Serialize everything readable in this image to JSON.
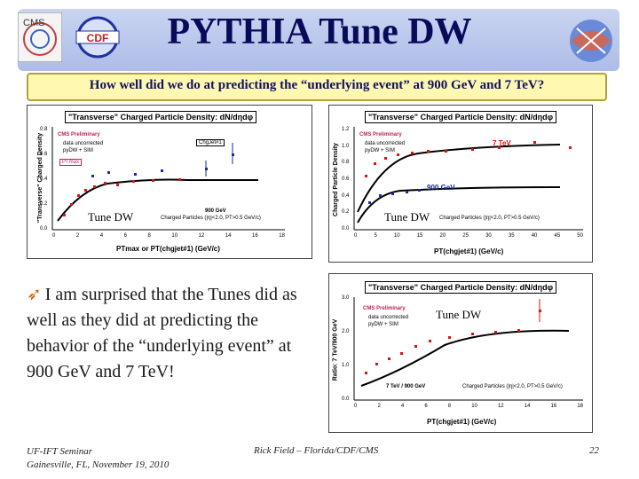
{
  "header": {
    "title": "PYTHIA Tune DW",
    "question": "How well did we do at predicting the “underlying event” at 900 GeV and 7 TeV?"
  },
  "logos": {
    "cdf_text": "CDF",
    "cms_text": "CMS"
  },
  "plots": {
    "p1": {
      "title": "\"Transverse\" Charged Particle Density: dN/dηdφ",
      "ylabel": "\"Transverse\" Charged Density",
      "xlabel": "PTmax or PT(chgjet#1) (GeV/c)",
      "legend_prelim": "CMS Preliminary",
      "legend_data": "data uncorrected",
      "legend_sim": "pyDW + SIM",
      "legend_ptmax": "PTmax",
      "legend_chgjet": "ChgJet#1",
      "energy": "900 GeV",
      "cuts": "Charged Particles (|η|<2.0, PT>0.5 GeV/c)",
      "tune": "Tune DW",
      "xticks": [
        "0",
        "2",
        "4",
        "6",
        "8",
        "10",
        "12",
        "14",
        "16",
        "18"
      ],
      "yticks": [
        "0.0",
        "0.2",
        "0.4",
        "0.6",
        "0.8"
      ]
    },
    "p2": {
      "title": "\"Transverse\" Charged Particle Density: dN/dηdφ",
      "ylabel": "Charged Particle Density",
      "xlabel": "PT(chgjet#1) (GeV/c)",
      "legend_prelim": "CMS Preliminary",
      "legend_data": "data uncorrected",
      "legend_sim": "pyDW + SIM",
      "energy_high": "7 TeV",
      "energy_low": "900 GeV",
      "cuts": "Charged Particles (|η|<2.0, PT>0.5 GeV/c)",
      "tune": "Tune DW",
      "xticks": [
        "0",
        "5",
        "10",
        "15",
        "20",
        "25",
        "30",
        "35",
        "40",
        "45",
        "50"
      ],
      "yticks": [
        "0.0",
        "0.2",
        "0.4",
        "0.6",
        "0.8",
        "1.0",
        "1.2"
      ]
    },
    "p3": {
      "title": "\"Transverse\" Charged Particle Density: dN/dηdφ",
      "ylabel": "Ratio: 7 TeV/900 GeV",
      "xlabel": "PT(chgjet#1) (GeV/c)",
      "legend_prelim": "CMS Preliminary",
      "legend_data": "data uncorrected",
      "legend_sim": "pyDW + SIM",
      "ratio_label": "7 TeV / 900 GeV",
      "cuts": "Charged Particles (|η|<2.0, PT>0.5 GeV/c)",
      "tune": "Tune DW",
      "xticks": [
        "0",
        "2",
        "4",
        "6",
        "8",
        "10",
        "12",
        "14",
        "16",
        "18"
      ],
      "yticks": [
        "0.0",
        "1.0",
        "2.0",
        "3.0"
      ]
    }
  },
  "body": {
    "bullet": "I am surprised that the Tunes did as well as they did at predicting the behavior of the “underlying event” at 900 GeV and 7 TeV!"
  },
  "footer": {
    "seminar": "UF-IFT Seminar",
    "date": "Gainesville, FL, November 19, 2010",
    "author": "Rick Field – Florida/CDF/CMS",
    "page": "22"
  },
  "colors": {
    "title": "#0a0a5a",
    "banner": "#b8c6ee",
    "question_bg": "#fff8b0",
    "data_red": "#e01010",
    "data_blue": "#1a2a9a"
  }
}
